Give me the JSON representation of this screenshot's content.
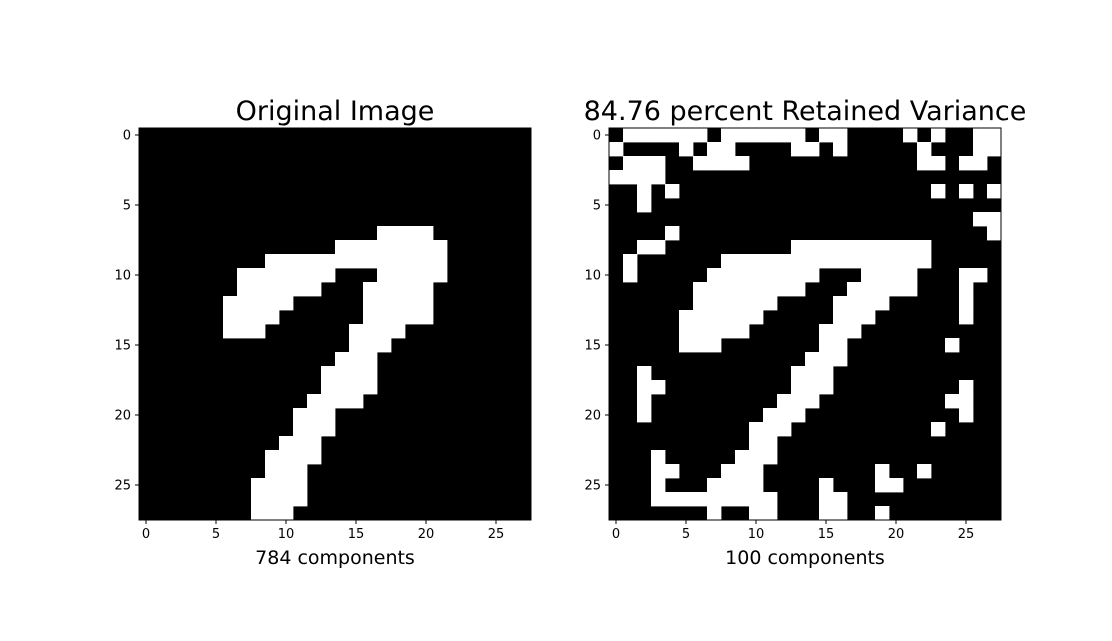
{
  "chart_data": [
    {
      "type": "heatmap",
      "title": "Original Image",
      "xlabel": "784 components",
      "grid_size": 28,
      "xticks": [
        0,
        5,
        10,
        15,
        20,
        25
      ],
      "yticks": [
        0,
        5,
        10,
        15,
        20,
        25
      ],
      "colormap": [
        "#000000",
        "#ffffff"
      ],
      "white_pixels": [
        [
          7,
          17
        ],
        [
          7,
          18
        ],
        [
          7,
          19
        ],
        [
          7,
          20
        ],
        [
          8,
          14
        ],
        [
          8,
          15
        ],
        [
          8,
          16
        ],
        [
          8,
          17
        ],
        [
          8,
          18
        ],
        [
          8,
          19
        ],
        [
          8,
          20
        ],
        [
          8,
          21
        ],
        [
          9,
          9
        ],
        [
          9,
          10
        ],
        [
          9,
          11
        ],
        [
          9,
          12
        ],
        [
          9,
          13
        ],
        [
          9,
          14
        ],
        [
          9,
          15
        ],
        [
          9,
          16
        ],
        [
          9,
          17
        ],
        [
          9,
          18
        ],
        [
          9,
          19
        ],
        [
          9,
          20
        ],
        [
          9,
          21
        ],
        [
          10,
          7
        ],
        [
          10,
          8
        ],
        [
          10,
          9
        ],
        [
          10,
          10
        ],
        [
          10,
          11
        ],
        [
          10,
          12
        ],
        [
          10,
          13
        ],
        [
          10,
          17
        ],
        [
          10,
          18
        ],
        [
          10,
          19
        ],
        [
          10,
          20
        ],
        [
          10,
          21
        ],
        [
          11,
          7
        ],
        [
          11,
          8
        ],
        [
          11,
          9
        ],
        [
          11,
          10
        ],
        [
          11,
          11
        ],
        [
          11,
          12
        ],
        [
          11,
          16
        ],
        [
          11,
          17
        ],
        [
          11,
          18
        ],
        [
          11,
          19
        ],
        [
          11,
          20
        ],
        [
          12,
          6
        ],
        [
          12,
          7
        ],
        [
          12,
          8
        ],
        [
          12,
          9
        ],
        [
          12,
          10
        ],
        [
          12,
          16
        ],
        [
          12,
          17
        ],
        [
          12,
          18
        ],
        [
          12,
          19
        ],
        [
          12,
          20
        ],
        [
          13,
          6
        ],
        [
          13,
          7
        ],
        [
          13,
          8
        ],
        [
          13,
          9
        ],
        [
          13,
          16
        ],
        [
          13,
          17
        ],
        [
          13,
          18
        ],
        [
          13,
          19
        ],
        [
          13,
          20
        ],
        [
          14,
          6
        ],
        [
          14,
          7
        ],
        [
          14,
          8
        ],
        [
          14,
          15
        ],
        [
          14,
          16
        ],
        [
          14,
          17
        ],
        [
          14,
          18
        ],
        [
          15,
          15
        ],
        [
          15,
          16
        ],
        [
          15,
          17
        ],
        [
          16,
          14
        ],
        [
          16,
          15
        ],
        [
          16,
          16
        ],
        [
          17,
          13
        ],
        [
          17,
          14
        ],
        [
          17,
          15
        ],
        [
          17,
          16
        ],
        [
          18,
          13
        ],
        [
          18,
          14
        ],
        [
          18,
          15
        ],
        [
          18,
          16
        ],
        [
          19,
          12
        ],
        [
          19,
          13
        ],
        [
          19,
          14
        ],
        [
          19,
          15
        ],
        [
          20,
          11
        ],
        [
          20,
          12
        ],
        [
          20,
          13
        ],
        [
          21,
          11
        ],
        [
          21,
          12
        ],
        [
          21,
          13
        ],
        [
          22,
          10
        ],
        [
          22,
          11
        ],
        [
          22,
          12
        ],
        [
          23,
          9
        ],
        [
          23,
          10
        ],
        [
          23,
          11
        ],
        [
          23,
          12
        ],
        [
          24,
          9
        ],
        [
          24,
          10
        ],
        [
          24,
          11
        ],
        [
          25,
          8
        ],
        [
          25,
          9
        ],
        [
          25,
          10
        ],
        [
          25,
          11
        ],
        [
          26,
          8
        ],
        [
          26,
          9
        ],
        [
          26,
          10
        ],
        [
          26,
          11
        ],
        [
          27,
          8
        ],
        [
          27,
          9
        ],
        [
          27,
          10
        ]
      ]
    },
    {
      "type": "heatmap",
      "title": "84.76 percent Retained Variance",
      "xlabel": "100 components",
      "grid_size": 28,
      "xticks": [
        0,
        5,
        10,
        15,
        20,
        25
      ],
      "yticks": [
        0,
        5,
        10,
        15,
        20,
        25
      ],
      "colormap": [
        "#000000",
        "#ffffff"
      ],
      "white_pixels": [
        [
          0,
          1
        ],
        [
          0,
          2
        ],
        [
          0,
          3
        ],
        [
          0,
          4
        ],
        [
          0,
          5
        ],
        [
          0,
          6
        ],
        [
          0,
          8
        ],
        [
          0,
          9
        ],
        [
          0,
          10
        ],
        [
          0,
          11
        ],
        [
          0,
          12
        ],
        [
          0,
          13
        ],
        [
          0,
          15
        ],
        [
          0,
          16
        ],
        [
          0,
          21
        ],
        [
          0,
          23
        ],
        [
          0,
          26
        ],
        [
          0,
          27
        ],
        [
          1,
          0
        ],
        [
          1,
          5
        ],
        [
          1,
          7
        ],
        [
          1,
          8
        ],
        [
          1,
          13
        ],
        [
          1,
          14
        ],
        [
          1,
          16
        ],
        [
          1,
          22
        ],
        [
          1,
          26
        ],
        [
          1,
          27
        ],
        [
          2,
          1
        ],
        [
          2,
          2
        ],
        [
          2,
          3
        ],
        [
          2,
          6
        ],
        [
          2,
          7
        ],
        [
          2,
          8
        ],
        [
          2,
          9
        ],
        [
          2,
          22
        ],
        [
          2,
          23
        ],
        [
          2,
          25
        ],
        [
          2,
          26
        ],
        [
          3,
          0
        ],
        [
          3,
          1
        ],
        [
          3,
          2
        ],
        [
          3,
          3
        ],
        [
          4,
          2
        ],
        [
          4,
          4
        ],
        [
          4,
          23
        ],
        [
          4,
          25
        ],
        [
          4,
          27
        ],
        [
          5,
          2
        ],
        [
          6,
          26
        ],
        [
          6,
          27
        ],
        [
          7,
          4
        ],
        [
          7,
          27
        ],
        [
          8,
          2
        ],
        [
          8,
          3
        ],
        [
          8,
          13
        ],
        [
          8,
          14
        ],
        [
          8,
          15
        ],
        [
          8,
          16
        ],
        [
          8,
          17
        ],
        [
          8,
          18
        ],
        [
          8,
          19
        ],
        [
          8,
          20
        ],
        [
          8,
          21
        ],
        [
          8,
          22
        ],
        [
          9,
          1
        ],
        [
          9,
          8
        ],
        [
          9,
          9
        ],
        [
          9,
          10
        ],
        [
          9,
          11
        ],
        [
          9,
          12
        ],
        [
          9,
          13
        ],
        [
          9,
          14
        ],
        [
          9,
          15
        ],
        [
          9,
          16
        ],
        [
          9,
          17
        ],
        [
          9,
          18
        ],
        [
          9,
          19
        ],
        [
          9,
          20
        ],
        [
          9,
          21
        ],
        [
          9,
          22
        ],
        [
          10,
          1
        ],
        [
          10,
          7
        ],
        [
          10,
          8
        ],
        [
          10,
          9
        ],
        [
          10,
          10
        ],
        [
          10,
          11
        ],
        [
          10,
          12
        ],
        [
          10,
          13
        ],
        [
          10,
          14
        ],
        [
          10,
          18
        ],
        [
          10,
          19
        ],
        [
          10,
          20
        ],
        [
          10,
          21
        ],
        [
          10,
          25
        ],
        [
          10,
          26
        ],
        [
          11,
          6
        ],
        [
          11,
          7
        ],
        [
          11,
          8
        ],
        [
          11,
          9
        ],
        [
          11,
          10
        ],
        [
          11,
          11
        ],
        [
          11,
          12
        ],
        [
          11,
          13
        ],
        [
          11,
          17
        ],
        [
          11,
          18
        ],
        [
          11,
          19
        ],
        [
          11,
          20
        ],
        [
          11,
          21
        ],
        [
          11,
          25
        ],
        [
          12,
          6
        ],
        [
          12,
          7
        ],
        [
          12,
          8
        ],
        [
          12,
          9
        ],
        [
          12,
          10
        ],
        [
          12,
          11
        ],
        [
          12,
          16
        ],
        [
          12,
          17
        ],
        [
          12,
          18
        ],
        [
          12,
          19
        ],
        [
          12,
          25
        ],
        [
          13,
          5
        ],
        [
          13,
          6
        ],
        [
          13,
          7
        ],
        [
          13,
          8
        ],
        [
          13,
          9
        ],
        [
          13,
          10
        ],
        [
          13,
          16
        ],
        [
          13,
          17
        ],
        [
          13,
          18
        ],
        [
          13,
          25
        ],
        [
          14,
          5
        ],
        [
          14,
          6
        ],
        [
          14,
          7
        ],
        [
          14,
          8
        ],
        [
          14,
          9
        ],
        [
          14,
          15
        ],
        [
          14,
          16
        ],
        [
          14,
          17
        ],
        [
          15,
          5
        ],
        [
          15,
          6
        ],
        [
          15,
          7
        ],
        [
          15,
          15
        ],
        [
          15,
          16
        ],
        [
          15,
          24
        ],
        [
          16,
          14
        ],
        [
          16,
          15
        ],
        [
          16,
          16
        ],
        [
          17,
          2
        ],
        [
          17,
          13
        ],
        [
          17,
          14
        ],
        [
          17,
          15
        ],
        [
          18,
          2
        ],
        [
          18,
          3
        ],
        [
          18,
          13
        ],
        [
          18,
          14
        ],
        [
          18,
          15
        ],
        [
          18,
          25
        ],
        [
          19,
          2
        ],
        [
          19,
          12
        ],
        [
          19,
          13
        ],
        [
          19,
          14
        ],
        [
          19,
          24
        ],
        [
          19,
          25
        ],
        [
          20,
          2
        ],
        [
          20,
          11
        ],
        [
          20,
          12
        ],
        [
          20,
          13
        ],
        [
          20,
          25
        ],
        [
          21,
          10
        ],
        [
          21,
          11
        ],
        [
          21,
          12
        ],
        [
          21,
          23
        ],
        [
          22,
          10
        ],
        [
          22,
          11
        ],
        [
          23,
          3
        ],
        [
          23,
          9
        ],
        [
          23,
          10
        ],
        [
          23,
          11
        ],
        [
          24,
          3
        ],
        [
          24,
          4
        ],
        [
          24,
          8
        ],
        [
          24,
          9
        ],
        [
          24,
          10
        ],
        [
          24,
          19
        ],
        [
          24,
          22
        ],
        [
          25,
          3
        ],
        [
          25,
          7
        ],
        [
          25,
          8
        ],
        [
          25,
          9
        ],
        [
          25,
          10
        ],
        [
          25,
          15
        ],
        [
          25,
          19
        ],
        [
          25,
          20
        ],
        [
          26,
          3
        ],
        [
          26,
          4
        ],
        [
          26,
          5
        ],
        [
          26,
          6
        ],
        [
          26,
          7
        ],
        [
          26,
          8
        ],
        [
          26,
          9
        ],
        [
          26,
          10
        ],
        [
          26,
          11
        ],
        [
          26,
          15
        ],
        [
          26,
          16
        ],
        [
          27,
          7
        ],
        [
          27,
          10
        ],
        [
          27,
          11
        ],
        [
          27,
          15
        ],
        [
          27,
          16
        ],
        [
          27,
          19
        ]
      ]
    }
  ]
}
